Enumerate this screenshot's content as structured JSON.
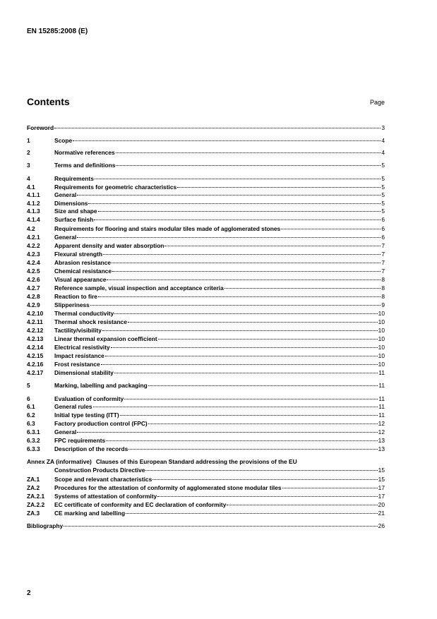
{
  "header": {
    "code": "EN 15285:2008 (E)"
  },
  "contents": {
    "title": "Contents",
    "page_label": "Page",
    "entries": [
      {
        "title": "Foreword",
        "page": "3"
      },
      {
        "number": "1",
        "title": "Scope",
        "page": "4"
      },
      {
        "number": "2",
        "title": "Normative references",
        "page": "4"
      },
      {
        "number": "3",
        "title": "Terms and definitions",
        "page": "5"
      },
      {
        "number": "4",
        "title": "Requirements",
        "page": "5"
      },
      {
        "number": "4.1",
        "title": "Requirements for geometric characteristics",
        "page": "5"
      },
      {
        "number": "4.1.1",
        "title": "General",
        "page": "5"
      },
      {
        "number": "4.1.2",
        "title": "Dimensions",
        "page": "5"
      },
      {
        "number": "4.1.3",
        "title": "Size and shape",
        "page": "5"
      },
      {
        "number": "4.1.4",
        "title": "Surface finish",
        "page": "6"
      },
      {
        "number": "4.2",
        "title": "Requirements for flooring and stairs modular tiles made of agglomerated stones",
        "page": "6"
      },
      {
        "number": "4.2.1",
        "title": "General",
        "page": "6"
      },
      {
        "number": "4.2.2",
        "title": "Apparent density and water absorption",
        "page": "7"
      },
      {
        "number": "4.2.3",
        "title": "Flexural strength",
        "page": "7"
      },
      {
        "number": "4.2.4",
        "title": "Abrasion resistance",
        "page": "7"
      },
      {
        "number": "4.2.5",
        "title": "Chemical resistance",
        "page": "7"
      },
      {
        "number": "4.2.6",
        "title": "Visual appearance",
        "page": "8"
      },
      {
        "number": "4.2.7",
        "title": "Reference sample, visual inspection and acceptance criteria",
        "page": "8"
      },
      {
        "number": "4.2.8",
        "title": "Reaction to fire",
        "page": "8"
      },
      {
        "number": "4.2.9",
        "title": "Slipperiness",
        "page": "9"
      },
      {
        "number": "4.2.10",
        "title": "Thermal conductivity",
        "page": "10"
      },
      {
        "number": "4.2.11",
        "title": "Thermal shock resistance",
        "page": "10"
      },
      {
        "number": "4.2.12",
        "title": "Tactility/visibility",
        "page": "10"
      },
      {
        "number": "4.2.13",
        "title": "Linear thermal expansion coefficient",
        "page": "10"
      },
      {
        "number": "4.2.14",
        "title": "Electrical resistivity",
        "page": "10"
      },
      {
        "number": "4.2.15",
        "title": "Impact resistance",
        "page": "10"
      },
      {
        "number": "4.2.16",
        "title": "Frost resistance",
        "page": "10"
      },
      {
        "number": "4.2.17",
        "title": "Dimensional stability",
        "page": "11"
      },
      {
        "number": "5",
        "title": "Marking, labelling and packaging",
        "page": "11"
      },
      {
        "number": "6",
        "title": "Evaluation of conformity",
        "page": "11"
      },
      {
        "number": "6.1",
        "title": "General rules",
        "page": "11"
      },
      {
        "number": "6.2",
        "title": "Initial type testing (ITT)",
        "page": "11"
      },
      {
        "number": "6.3",
        "title": "Factory production control (FPC)",
        "page": "12"
      },
      {
        "number": "6.3.1",
        "title": "General",
        "page": "12"
      },
      {
        "number": "6.3.2",
        "title": "FPC requirements",
        "page": "13"
      },
      {
        "number": "6.3.3",
        "title": "Description of the records",
        "page": "13"
      },
      {
        "number": "Annex ZA (informative)",
        "title": "Clauses of this European Standard addressing the provisions of the EU",
        "continuation": "Construction Products Directive",
        "page": "15"
      },
      {
        "number": "ZA.1",
        "title": "Scope and relevant characteristics",
        "page": "15"
      },
      {
        "number": "ZA.2",
        "title": "Procedures for the attestation of conformity of agglomerated stone modular tiles",
        "page": "17"
      },
      {
        "number": "ZA.2.1",
        "title": "Systems of attestation of conformity",
        "page": "17"
      },
      {
        "number": "ZA.2.2",
        "title": "EC certificate of conformity and EC declaration of conformity",
        "page": "20"
      },
      {
        "number": "ZA.3",
        "title": "CE marking and labelling",
        "page": "21"
      },
      {
        "title": "Bibliography",
        "page": "26"
      }
    ]
  },
  "footer": {
    "page_number": "2"
  }
}
